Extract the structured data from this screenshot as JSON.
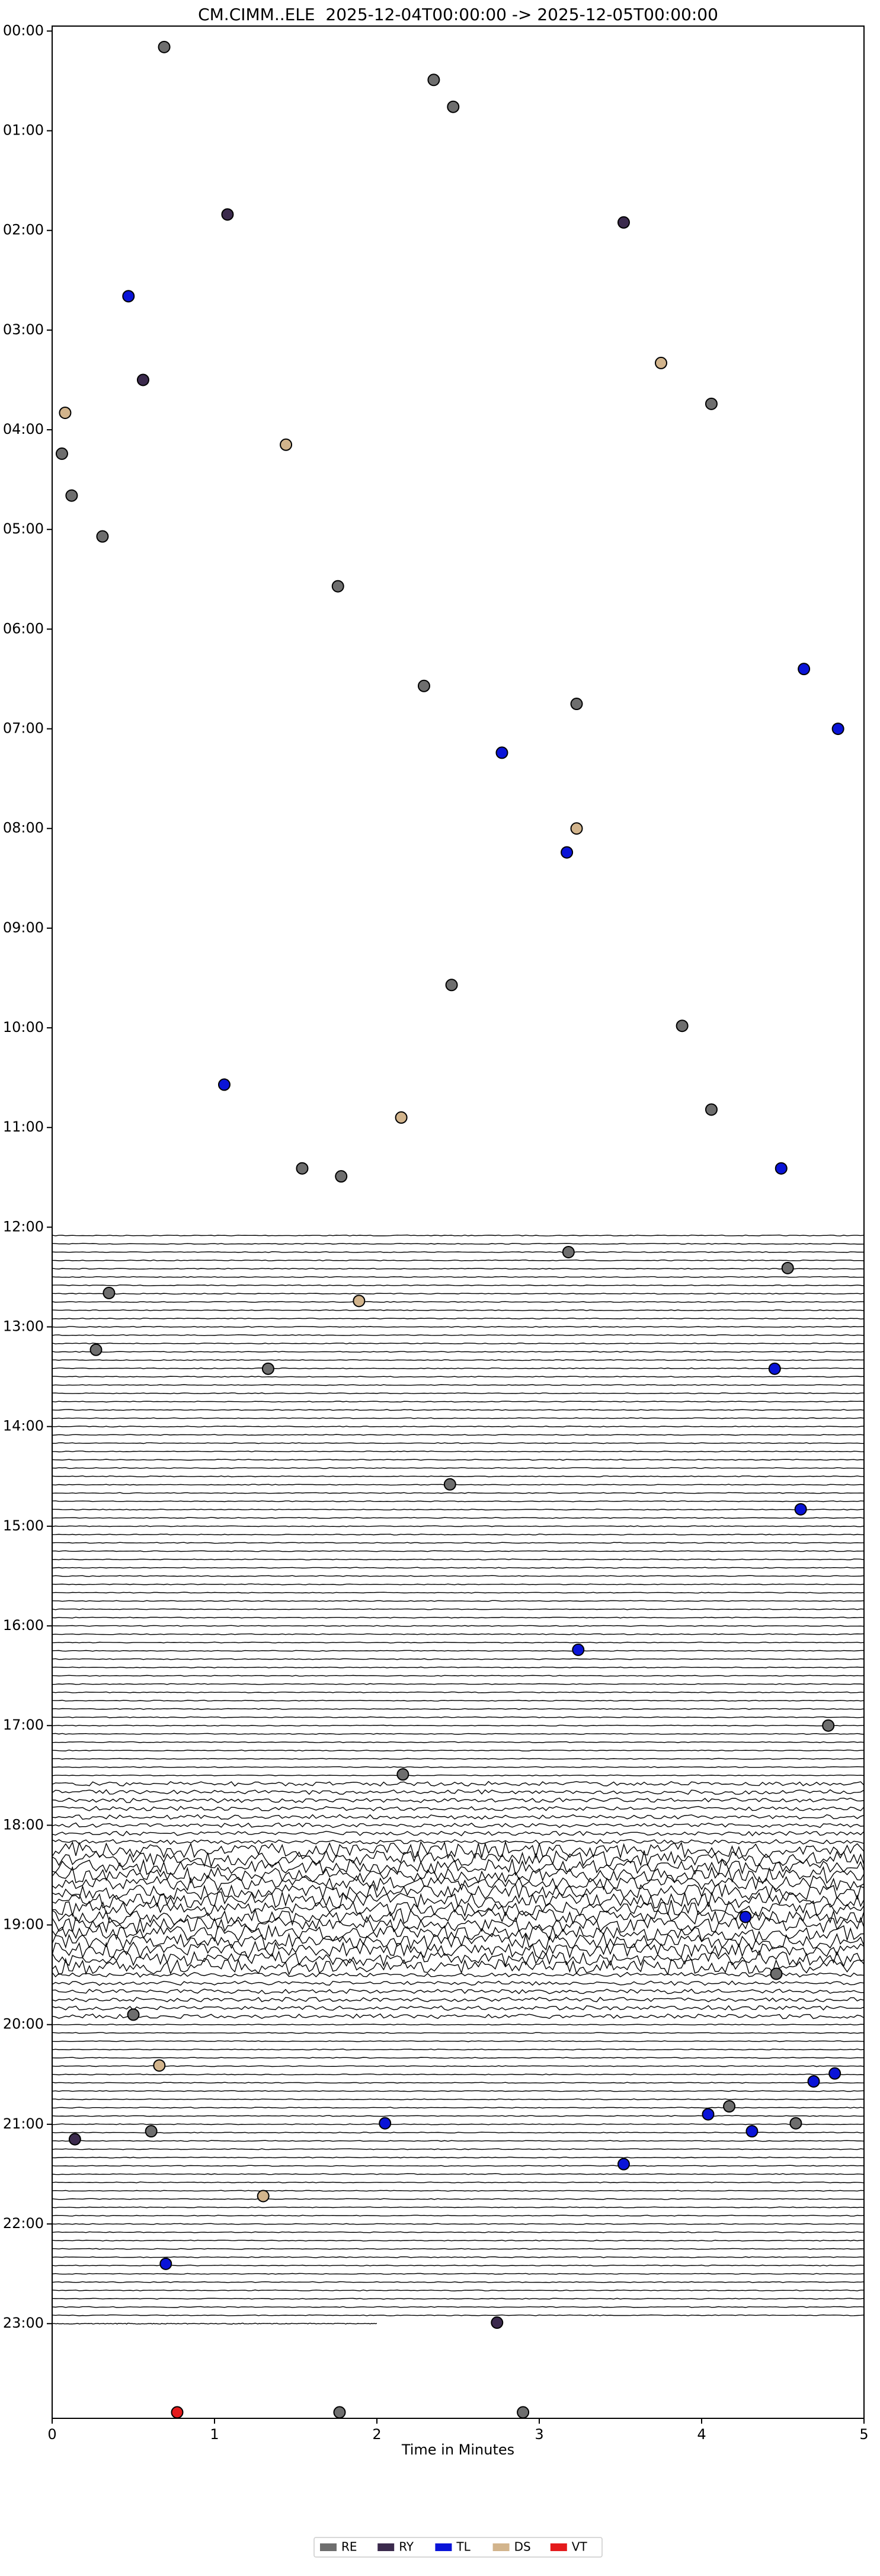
{
  "chart_data": {
    "type": "scatter",
    "title": "CM.CIMM..ELE  2025-12-04T00:00:00 -> 2025-12-05T00:00:00",
    "xlabel": "Time in Minutes",
    "xlim": [
      0,
      5
    ],
    "xticks": [
      0,
      1,
      2,
      3,
      4,
      5
    ],
    "ylim": [
      23.95,
      -0.05
    ],
    "yticks": [
      {
        "value": 0,
        "label": "00:00"
      },
      {
        "value": 1,
        "label": "01:00"
      },
      {
        "value": 2,
        "label": "02:00"
      },
      {
        "value": 3,
        "label": "03:00"
      },
      {
        "value": 4,
        "label": "04:00"
      },
      {
        "value": 5,
        "label": "05:00"
      },
      {
        "value": 6,
        "label": "06:00"
      },
      {
        "value": 7,
        "label": "07:00"
      },
      {
        "value": 8,
        "label": "08:00"
      },
      {
        "value": 9,
        "label": "09:00"
      },
      {
        "value": 10,
        "label": "10:00"
      },
      {
        "value": 11,
        "label": "11:00"
      },
      {
        "value": 12,
        "label": "12:00"
      },
      {
        "value": 13,
        "label": "13:00"
      },
      {
        "value": 14,
        "label": "14:00"
      },
      {
        "value": 15,
        "label": "15:00"
      },
      {
        "value": 16,
        "label": "16:00"
      },
      {
        "value": 17,
        "label": "17:00"
      },
      {
        "value": 18,
        "label": "18:00"
      },
      {
        "value": 19,
        "label": "19:00"
      },
      {
        "value": 20,
        "label": "20:00"
      },
      {
        "value": 21,
        "label": "21:00"
      },
      {
        "value": 22,
        "label": "22:00"
      },
      {
        "value": 23,
        "label": "23:00"
      }
    ],
    "legend": "bottom",
    "series": [
      {
        "name": "RE",
        "color": "#6e6e6e",
        "x": [
          0.69,
          2.35,
          2.47,
          4.06,
          0.06,
          0.12,
          0.31,
          1.76,
          2.29,
          3.23,
          2.46,
          3.88,
          4.06,
          1.54,
          1.78,
          3.18,
          4.53,
          0.35,
          0.27,
          1.33,
          2.45,
          4.78,
          2.16,
          4.46,
          0.5,
          4.17,
          4.58,
          0.61,
          1.77,
          2.9
        ],
        "y": [
          0.16,
          0.49,
          0.76,
          3.74,
          4.24,
          4.66,
          5.07,
          5.57,
          6.57,
          6.75,
          9.57,
          9.98,
          10.82,
          11.41,
          11.49,
          12.25,
          12.41,
          12.66,
          13.23,
          13.42,
          14.58,
          17.0,
          17.49,
          19.49,
          19.9,
          20.82,
          20.99,
          21.07,
          23.89,
          23.89
        ]
      },
      {
        "name": "RY",
        "color": "#3b2a4d",
        "x": [
          1.08,
          3.52,
          0.56,
          0.14,
          2.74
        ],
        "y": [
          1.84,
          1.92,
          3.5,
          21.15,
          22.99
        ]
      },
      {
        "name": "TL",
        "color": "#0a14d8",
        "x": [
          0.47,
          4.63,
          4.84,
          2.77,
          3.17,
          1.06,
          4.49,
          4.45,
          4.61,
          3.24,
          4.27,
          4.82,
          4.69,
          4.04,
          4.31,
          2.05,
          3.52,
          0.7
        ],
        "y": [
          2.66,
          6.4,
          7.0,
          7.24,
          8.24,
          10.57,
          11.41,
          13.42,
          14.83,
          16.24,
          18.92,
          20.49,
          20.57,
          20.9,
          21.07,
          20.99,
          21.4,
          22.4
        ]
      },
      {
        "name": "DS",
        "color": "#d2b48c",
        "x": [
          3.75,
          0.08,
          1.44,
          3.23,
          2.15,
          1.89,
          0.66,
          1.3
        ],
        "y": [
          3.33,
          3.83,
          4.15,
          8.0,
          10.9,
          12.74,
          20.41,
          21.72
        ]
      },
      {
        "name": "VT",
        "color": "#e41a1c",
        "x": [
          0.77
        ],
        "y": [
          23.89
        ]
      }
    ]
  }
}
